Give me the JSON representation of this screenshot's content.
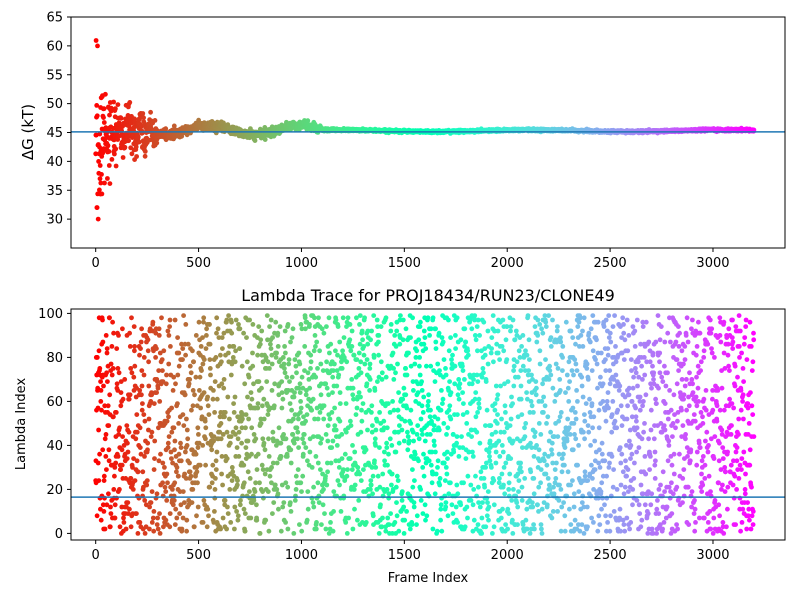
{
  "chart_data": [
    {
      "type": "scatter",
      "title": "",
      "xlabel": "",
      "ylabel": "ΔG (kT)",
      "xlim": [
        -120,
        3350
      ],
      "ylim": [
        25,
        65
      ],
      "xticks": [
        0,
        500,
        1000,
        1500,
        2000,
        2500,
        3000
      ],
      "yticks": [
        30,
        35,
        40,
        45,
        50,
        55,
        60,
        65
      ],
      "hline": 45.1,
      "hline_color": "#1f77b4",
      "colormap": "rainbow",
      "n_points": 3200,
      "description_of_points": "Running free-energy estimate per frame; converges from a wide spread (26-60) near frame 0 to ~45.3 after frame 1000",
      "grid": false
    },
    {
      "type": "scatter",
      "title": "Lambda Trace for PROJ18434/RUN23/CLONE49",
      "xlabel": "Frame Index",
      "ylabel": "Lambda Index",
      "xlim": [
        -120,
        3350
      ],
      "ylim": [
        -3,
        102
      ],
      "xticks": [
        0,
        500,
        1000,
        1500,
        2000,
        2500,
        3000
      ],
      "yticks": [
        0,
        20,
        40,
        60,
        80,
        100
      ],
      "hline": 16.5,
      "hline_color": "#1f77b4",
      "colormap": "rainbow",
      "n_points": 3200,
      "description_of_points": "Lambda index per frame sampled roughly uniformly between 0 and 99",
      "grid": false
    }
  ]
}
